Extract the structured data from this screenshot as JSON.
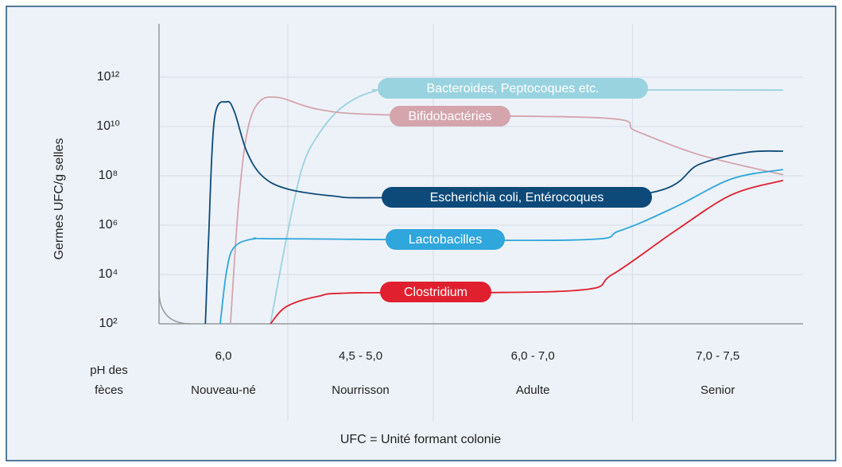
{
  "chart_data": {
    "type": "line",
    "y_label": "Germes UFC/g selles",
    "footnote": "UFC = Unité formant colonie",
    "ph_label": [
      "pH des",
      "fèces"
    ],
    "stages": [
      {
        "ph": "6,0",
        "name": "Nouveau-né"
      },
      {
        "ph": "4,5 - 5,0",
        "name": "Nourrisson"
      },
      {
        "ph": "6,0 - 7,0",
        "name": "Adulte"
      },
      {
        "ph": "7,0 - 7,5",
        "name": "Senior"
      }
    ],
    "xlim": [
      0,
      100
    ],
    "xticks": [
      20,
      42.6,
      73.5
    ],
    "log_scale": true,
    "grid": true,
    "ylim": [
      100,
      100000000000000
    ],
    "yticks": [
      {
        "value": 100,
        "label": "10²"
      },
      {
        "value": 10000,
        "label": "10⁴"
      },
      {
        "value": 1000000,
        "label": "10⁶"
      },
      {
        "value": 100000000,
        "label": "10⁸"
      },
      {
        "value": 10000000000,
        "label": "10¹⁰"
      },
      {
        "value": 1000000000000,
        "label": "10¹²"
      }
    ],
    "series": [
      {
        "name": "Bacteroides, Peptocoques etc.",
        "color": "#9ad3e0",
        "x": [
          17.3,
          19.8,
          22.2,
          24.7,
          28.4,
          33.3,
          39.5,
          96.9
        ],
        "values": [
          100,
          300000,
          200000000,
          4500000000,
          60000000000,
          260000000000,
          300000000000,
          300000000000
        ]
      },
      {
        "name": "Bifidobactéries",
        "color": "#d4a5ad",
        "x": [
          11.1,
          12.3,
          13.6,
          15.4,
          18.5,
          24.7,
          34.6,
          69.1,
          74.1,
          84,
          96.9
        ],
        "values": [
          100,
          5000000,
          4500000000,
          90000000000,
          150000000000,
          50000000000,
          30000000000,
          22000000000,
          6500000000,
          700000000,
          110000000
        ]
      },
      {
        "name": "Escherichia coli, Entérocoques",
        "color": "#0d4a7a",
        "x": [
          7.2,
          7.7,
          8.6,
          10.5,
          11.7,
          13.6,
          16,
          19.8,
          27.2,
          34.6,
          74.1,
          84,
          91.4,
          96.9
        ],
        "values": [
          100,
          300000,
          20000000000,
          100000000000,
          40000000000,
          1000000000,
          100000000,
          30000000,
          15000000,
          13000000,
          17000000,
          300000000,
          900000000,
          1000000000
        ]
      },
      {
        "name": "Lactobacilles",
        "color": "#2fa6dc",
        "x": [
          9.5,
          10.5,
          11.7,
          14.8,
          19.8,
          64.2,
          71.6,
          80.2,
          88.9,
          96.9
        ],
        "values": [
          100,
          14000,
          130000,
          280000,
          280000,
          250000,
          600000,
          5500000,
          75000000,
          180000000
        ]
      },
      {
        "name": "Clostridium",
        "color": "#e0202e",
        "x": [
          17.3,
          19.8,
          24.7,
          30.9,
          64.2,
          70.4,
          80.2,
          88.9,
          96.9
        ],
        "values": [
          100,
          500,
          1300,
          1800,
          2200,
          10000,
          600000,
          17000000,
          65000000
        ]
      }
    ]
  }
}
